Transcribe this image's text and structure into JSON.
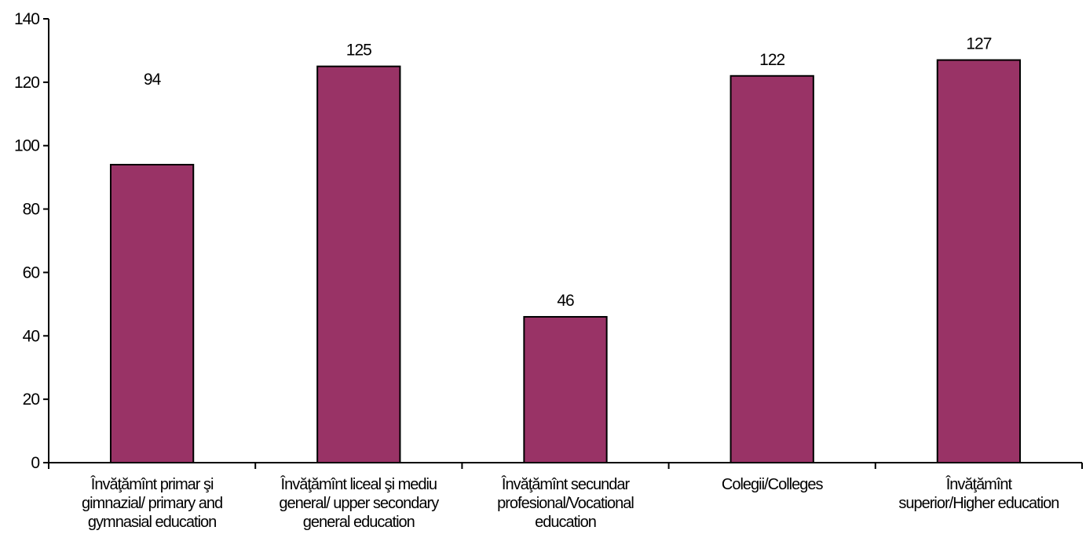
{
  "chart_data": {
    "type": "bar",
    "categories": [
      [
        "Învăţămînt primar şi",
        "gimnazial/ primary and",
        "gymnasial education"
      ],
      [
        "Învăţămînt liceal şi mediu",
        "general/ upper secondary",
        "general education"
      ],
      [
        "Învăţămînt secundar",
        "profesional/Vocational",
        "education"
      ],
      [
        "Colegii/Colleges"
      ],
      [
        "Învăţămînt",
        "superior/Higher education"
      ]
    ],
    "values": [
      94,
      125,
      46,
      122,
      127
    ],
    "data_labels": [
      "94",
      "125",
      "46",
      "122",
      "127"
    ],
    "title": "",
    "xlabel": "",
    "ylabel": "",
    "ylim": [
      0,
      140
    ],
    "yticks": [
      0,
      20,
      40,
      60,
      80,
      100,
      120,
      140
    ],
    "ytick_labels": [
      "0",
      "20",
      "40",
      "60",
      "80",
      "100",
      "120",
      "140"
    ],
    "bar_color": "#993366",
    "grid": false,
    "legend": "none"
  }
}
